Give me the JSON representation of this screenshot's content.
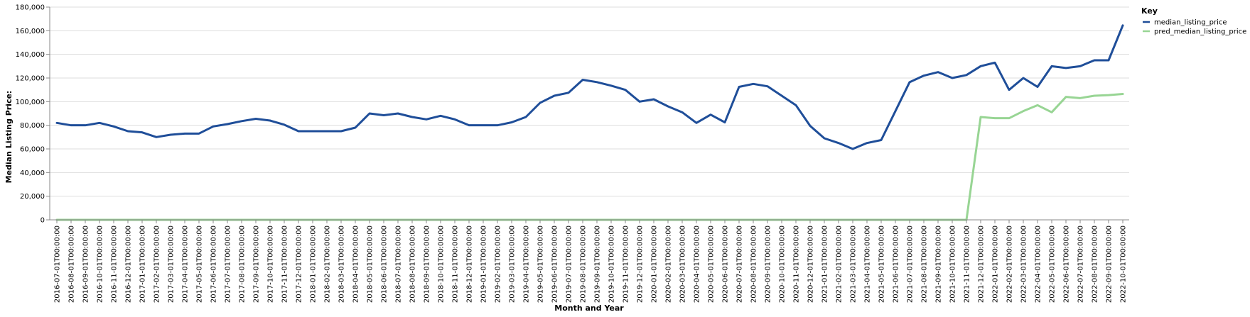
{
  "chart_data": {
    "type": "line",
    "xlabel": "Month and Year",
    "ylabel": "Median Listing Price:",
    "ylim": [
      0,
      180000
    ],
    "yticks": [
      "0",
      "20,000",
      "40,000",
      "60,000",
      "80,000",
      "100,000",
      "120,000",
      "140,000",
      "160,000",
      "180,000"
    ],
    "ytick_values": [
      0,
      20000,
      40000,
      60000,
      80000,
      100000,
      120000,
      140000,
      160000,
      180000
    ],
    "grid": true,
    "legend_title": "Key",
    "legend_position": "top-right",
    "x": [
      "2016-07-01T00:00:00",
      "2016-08-01T00:00:00",
      "2016-09-01T00:00:00",
      "2016-10-01T00:00:00",
      "2016-11-01T00:00:00",
      "2016-12-01T00:00:00",
      "2017-01-01T00:00:00",
      "2017-02-01T00:00:00",
      "2017-03-01T00:00:00",
      "2017-04-01T00:00:00",
      "2017-05-01T00:00:00",
      "2017-06-01T00:00:00",
      "2017-07-01T00:00:00",
      "2017-08-01T00:00:00",
      "2017-09-01T00:00:00",
      "2017-10-01T00:00:00",
      "2017-11-01T00:00:00",
      "2017-12-01T00:00:00",
      "2018-01-01T00:00:00",
      "2018-02-01T00:00:00",
      "2018-03-01T00:00:00",
      "2018-04-01T00:00:00",
      "2018-05-01T00:00:00",
      "2018-06-01T00:00:00",
      "2018-07-01T00:00:00",
      "2018-08-01T00:00:00",
      "2018-09-01T00:00:00",
      "2018-10-01T00:00:00",
      "2018-11-01T00:00:00",
      "2018-12-01T00:00:00",
      "2019-01-01T00:00:00",
      "2019-02-01T00:00:00",
      "2019-03-01T00:00:00",
      "2019-04-01T00:00:00",
      "2019-05-01T00:00:00",
      "2019-06-01T00:00:00",
      "2019-07-01T00:00:00",
      "2019-08-01T00:00:00",
      "2019-09-01T00:00:00",
      "2019-10-01T00:00:00",
      "2019-11-01T00:00:00",
      "2019-12-01T00:00:00",
      "2020-01-01T00:00:00",
      "2020-02-01T00:00:00",
      "2020-03-01T00:00:00",
      "2020-04-01T00:00:00",
      "2020-05-01T00:00:00",
      "2020-06-01T00:00:00",
      "2020-07-01T00:00:00",
      "2020-08-01T00:00:00",
      "2020-09-01T00:00:00",
      "2020-10-01T00:00:00",
      "2020-11-01T00:00:00",
      "2020-12-01T00:00:00",
      "2021-01-01T00:00:00",
      "2021-02-01T00:00:00",
      "2021-03-01T00:00:00",
      "2021-04-01T00:00:00",
      "2021-05-01T00:00:00",
      "2021-06-01T00:00:00",
      "2021-07-01T00:00:00",
      "2021-08-01T00:00:00",
      "2021-09-01T00:00:00",
      "2021-10-01T00:00:00",
      "2021-11-01T00:00:00",
      "2021-12-01T00:00:00",
      "2022-01-01T00:00:00",
      "2022-02-01T00:00:00",
      "2022-03-01T00:00:00",
      "2022-04-01T00:00:00",
      "2022-05-01T00:00:00",
      "2022-06-01T00:00:00",
      "2022-07-01T00:00:00",
      "2022-08-01T00:00:00",
      "2022-09-01T00:00:00",
      "2022-10-01T00:00:00"
    ],
    "series": [
      {
        "name": "median_listing_price",
        "color": "#1f4e99",
        "values": [
          82000,
          80000,
          80000,
          82000,
          79000,
          75000,
          74000,
          70000,
          72000,
          73000,
          73000,
          79000,
          81000,
          83500,
          85500,
          84000,
          80500,
          75000,
          75000,
          75000,
          75000,
          78000,
          90000,
          88500,
          90000,
          87000,
          85000,
          88000,
          85000,
          80000,
          80000,
          80000,
          82500,
          87000,
          99000,
          105000,
          107500,
          118500,
          116500,
          113500,
          110000,
          100000,
          102000,
          96000,
          91000,
          82000,
          89000,
          82500,
          112500,
          115000,
          113000,
          105000,
          97000,
          79500,
          69000,
          65000,
          60000,
          65000,
          67500,
          92000,
          116500,
          122000,
          125000,
          120000,
          122500,
          130000,
          133000,
          110000,
          120000,
          112500,
          130000,
          128500,
          130000,
          135000,
          135000,
          164500
        ]
      },
      {
        "name": "pred_median_listing_price",
        "color": "#98d594",
        "values": [
          0,
          0,
          0,
          0,
          0,
          0,
          0,
          0,
          0,
          0,
          0,
          0,
          0,
          0,
          0,
          0,
          0,
          0,
          0,
          0,
          0,
          0,
          0,
          0,
          0,
          0,
          0,
          0,
          0,
          0,
          0,
          0,
          0,
          0,
          0,
          0,
          0,
          0,
          0,
          0,
          0,
          0,
          0,
          0,
          0,
          0,
          0,
          0,
          0,
          0,
          0,
          0,
          0,
          0,
          0,
          0,
          0,
          0,
          0,
          0,
          0,
          0,
          0,
          0,
          0,
          87000,
          86000,
          86000,
          92000,
          97000,
          91000,
          104000,
          103000,
          105000,
          105500,
          106500
        ]
      }
    ]
  }
}
